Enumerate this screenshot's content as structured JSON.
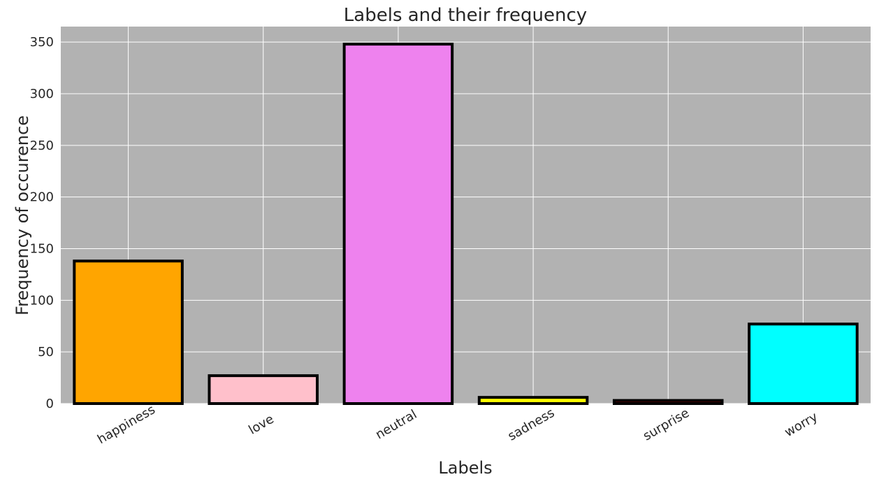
{
  "chart_data": {
    "type": "bar",
    "title": "Labels and their frequency",
    "xlabel": "Labels",
    "ylabel": "Frequency of occurence",
    "categories": [
      "happiness",
      "love",
      "neutral",
      "sadness",
      "surprise",
      "worry"
    ],
    "values": [
      138,
      27,
      348,
      6,
      3,
      77
    ],
    "colors": [
      "#ffa500",
      "#ffc0cb",
      "#ee82ee",
      "#ffff00",
      "#8b0000",
      "#00ffff"
    ],
    "edge_color": "#000000",
    "plot_background": "#b2b2b2",
    "grid": true,
    "ylim": [
      0,
      365
    ],
    "yticks": [
      0,
      50,
      100,
      150,
      200,
      250,
      300,
      350
    ]
  }
}
